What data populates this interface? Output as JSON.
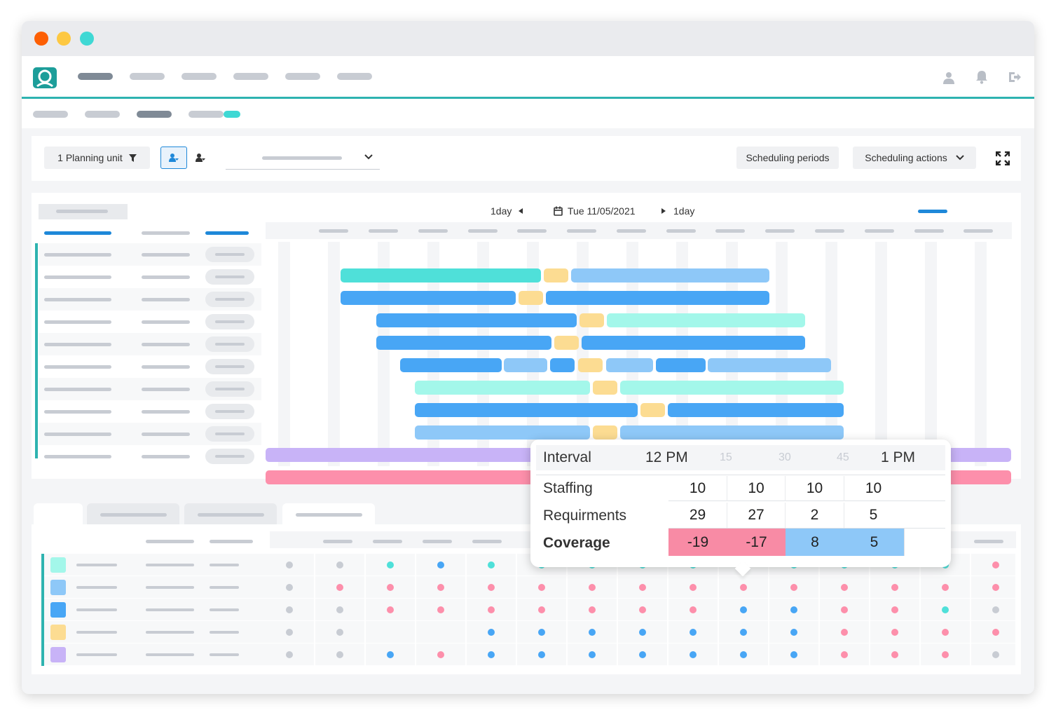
{
  "toolbar": {
    "planning_unit_label": "1 Planning unit",
    "scheduling_periods_label": "Scheduling periods",
    "scheduling_actions_label": "Scheduling actions"
  },
  "date_nav": {
    "prev_label": "1day",
    "date_label": "Tue 11/05/2021",
    "next_label": "1day"
  },
  "tooltip": {
    "interval_label": "Interval",
    "time_labels": [
      "12 PM",
      "15",
      "30",
      "45",
      "1 PM"
    ],
    "staffing_label": "Staffing",
    "staffing_values": [
      "10",
      "10",
      "10",
      "10"
    ],
    "requirements_label": "Requirments",
    "requirements_values": [
      "29",
      "27",
      "2",
      "5"
    ],
    "coverage_label": "Coverage",
    "coverage_values": [
      "-19",
      "-17",
      "8",
      "5"
    ]
  },
  "colors": {
    "accent": "#2eb3b0",
    "teal": "#4fe0d9",
    "light_teal": "#a3f7ea",
    "blue": "#48a6f5",
    "light_blue": "#8ec8f8",
    "yellow": "#fcdc92",
    "purple": "#c8b3f7",
    "pink": "#fd8fab",
    "coverage_negative": "#f88ba5",
    "coverage_positive": "#8ec8f8"
  }
}
